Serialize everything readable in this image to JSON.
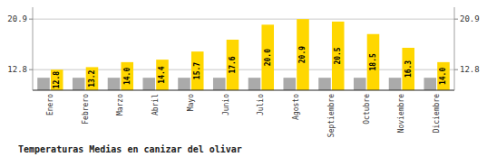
{
  "chart_data": {
    "type": "bar",
    "title": "Temperaturas Medias en canizar del olivar",
    "categories": [
      "Enero",
      "Febrero",
      "Marzo",
      "Abril",
      "Mayo",
      "Junio",
      "Julio",
      "Agosto",
      "Septiembre",
      "Octubre",
      "Noviembre",
      "Diciembre"
    ],
    "series": [
      {
        "color": "#AAAAAA",
        "values": [
          11.5,
          11.5,
          11.5,
          11.5,
          11.5,
          11.5,
          11.5,
          11.5,
          11.5,
          11.5,
          11.5,
          11.5
        ]
      },
      {
        "color": "#FFD700",
        "values": [
          12.8,
          13.2,
          14.0,
          14.4,
          15.7,
          17.6,
          20.0,
          20.9,
          20.5,
          18.5,
          16.3,
          14.0
        ],
        "value_labels": [
          "12.8",
          "13.2",
          "14.0",
          "14.4",
          "15.7",
          "17.6",
          "20.0",
          "20.9",
          "20.5",
          "18.5",
          "16.3",
          "14.0"
        ],
        "data_labels": true
      }
    ],
    "ylim": [
      9.5,
      22.8
    ],
    "yticks": [
      12.8,
      20.9
    ],
    "grid": true
  }
}
